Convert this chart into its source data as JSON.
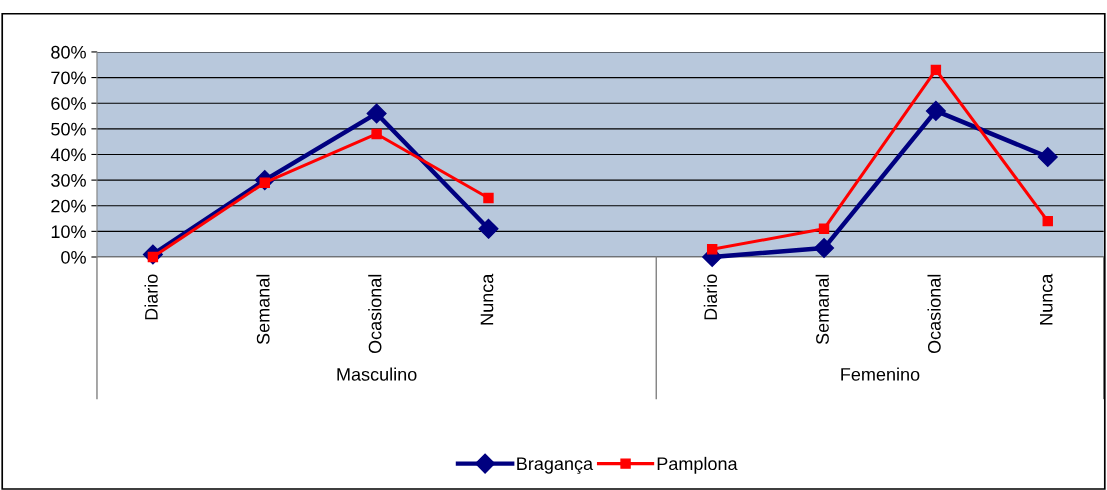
{
  "chart_data": {
    "type": "line",
    "categories": [
      "Diario",
      "Semanal",
      "Ocasional",
      "Nunca",
      null,
      "Diario",
      "Semanal",
      "Ocasional",
      "Nunca"
    ],
    "series": [
      {
        "name": "Bragança",
        "color": "#000080",
        "marker": "diamond",
        "values": [
          1,
          30,
          56,
          11,
          null,
          0,
          3.5,
          57,
          39
        ]
      },
      {
        "name": "Pamplona",
        "color": "#ff0000",
        "marker": "square",
        "values": [
          0,
          29,
          48,
          23,
          null,
          3,
          11,
          73,
          14
        ]
      }
    ],
    "annotations": [
      "Masculino",
      "Femenino"
    ],
    "ylim": [
      0,
      80
    ],
    "yticks": [
      {
        "value": 0,
        "label": "0%"
      },
      {
        "value": 10,
        "label": "10%"
      },
      {
        "value": 20,
        "label": "20%"
      },
      {
        "value": 30,
        "label": "30%"
      },
      {
        "value": 40,
        "label": "40%"
      },
      {
        "value": 50,
        "label": "50%"
      },
      {
        "value": 60,
        "label": "60%"
      },
      {
        "value": 70,
        "label": "70%"
      },
      {
        "value": 80,
        "label": "80%"
      }
    ],
    "grid": "y",
    "legend": "bottom",
    "line_style": "solid"
  }
}
